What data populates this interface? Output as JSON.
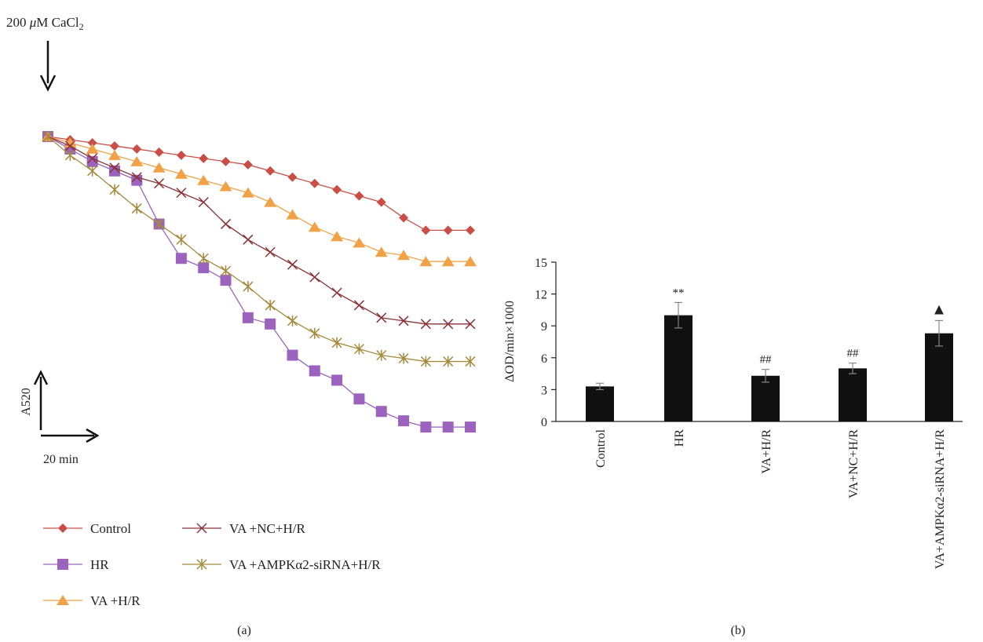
{
  "figure": {
    "panel_a_label": "(a)",
    "panel_b_label": "(b)"
  },
  "chart_data": [
    {
      "type": "line",
      "panel": "(a)",
      "annotation": {
        "prefix": "200 ",
        "mu": "μ",
        "text": "M CaCl",
        "subscript": "2"
      },
      "scale_bar": {
        "y_label": "A520",
        "x_label": "20 min"
      },
      "x": [
        1,
        2,
        3,
        4,
        5,
        6,
        7,
        8,
        9,
        10,
        11,
        12,
        13,
        14,
        15,
        16,
        17,
        18,
        19,
        20
      ],
      "ylim": [
        0,
        1
      ],
      "series": [
        {
          "name": "Control",
          "color": "#c94f46",
          "marker": "diamond",
          "values": [
            1.0,
            0.99,
            0.98,
            0.97,
            0.96,
            0.95,
            0.94,
            0.93,
            0.92,
            0.91,
            0.89,
            0.87,
            0.85,
            0.83,
            0.81,
            0.79,
            0.74,
            0.7,
            0.7,
            0.7
          ]
        },
        {
          "name": "HR",
          "color": "#9b63bd",
          "marker": "square",
          "values": [
            1.0,
            0.96,
            0.92,
            0.89,
            0.86,
            0.72,
            0.61,
            0.58,
            0.54,
            0.42,
            0.4,
            0.3,
            0.25,
            0.22,
            0.16,
            0.12,
            0.09,
            0.07,
            0.07,
            0.07
          ]
        },
        {
          "name": "VA +H/R",
          "color": "#f2a246",
          "marker": "triangle",
          "values": [
            1.0,
            0.98,
            0.96,
            0.94,
            0.92,
            0.9,
            0.88,
            0.86,
            0.84,
            0.82,
            0.79,
            0.75,
            0.71,
            0.68,
            0.66,
            0.63,
            0.62,
            0.6,
            0.6,
            0.6
          ]
        },
        {
          "name": "VA +NC+H/R",
          "color": "#8a3237",
          "marker": "x",
          "values": [
            1.0,
            0.97,
            0.93,
            0.9,
            0.87,
            0.85,
            0.82,
            0.79,
            0.72,
            0.67,
            0.63,
            0.59,
            0.55,
            0.5,
            0.46,
            0.42,
            0.41,
            0.4,
            0.4,
            0.4
          ]
        },
        {
          "name": "VA +AMPKα2-siRNA+H/R",
          "color": "#a58a3c",
          "marker": "star",
          "values": [
            1.0,
            0.94,
            0.89,
            0.83,
            0.77,
            0.72,
            0.67,
            0.61,
            0.57,
            0.52,
            0.46,
            0.41,
            0.37,
            0.34,
            0.32,
            0.3,
            0.29,
            0.28,
            0.28,
            0.28
          ]
        }
      ]
    },
    {
      "type": "bar",
      "panel": "(b)",
      "ylabel": "ΔOD/min×1000",
      "ylim": [
        0,
        15
      ],
      "yticks": [
        0,
        3,
        6,
        9,
        12,
        15
      ],
      "categories": [
        "Control",
        "HR",
        "VA+H/R",
        "VA+NC+H/R",
        "VA+AMPKα2-siRNA+H/R"
      ],
      "values": [
        3.3,
        10.0,
        4.3,
        5.0,
        8.3
      ],
      "errors": [
        0.3,
        1.2,
        0.6,
        0.5,
        1.2
      ],
      "annotations": [
        "",
        "**",
        "##",
        "##",
        "▲"
      ],
      "bar_color": "#111111"
    }
  ]
}
